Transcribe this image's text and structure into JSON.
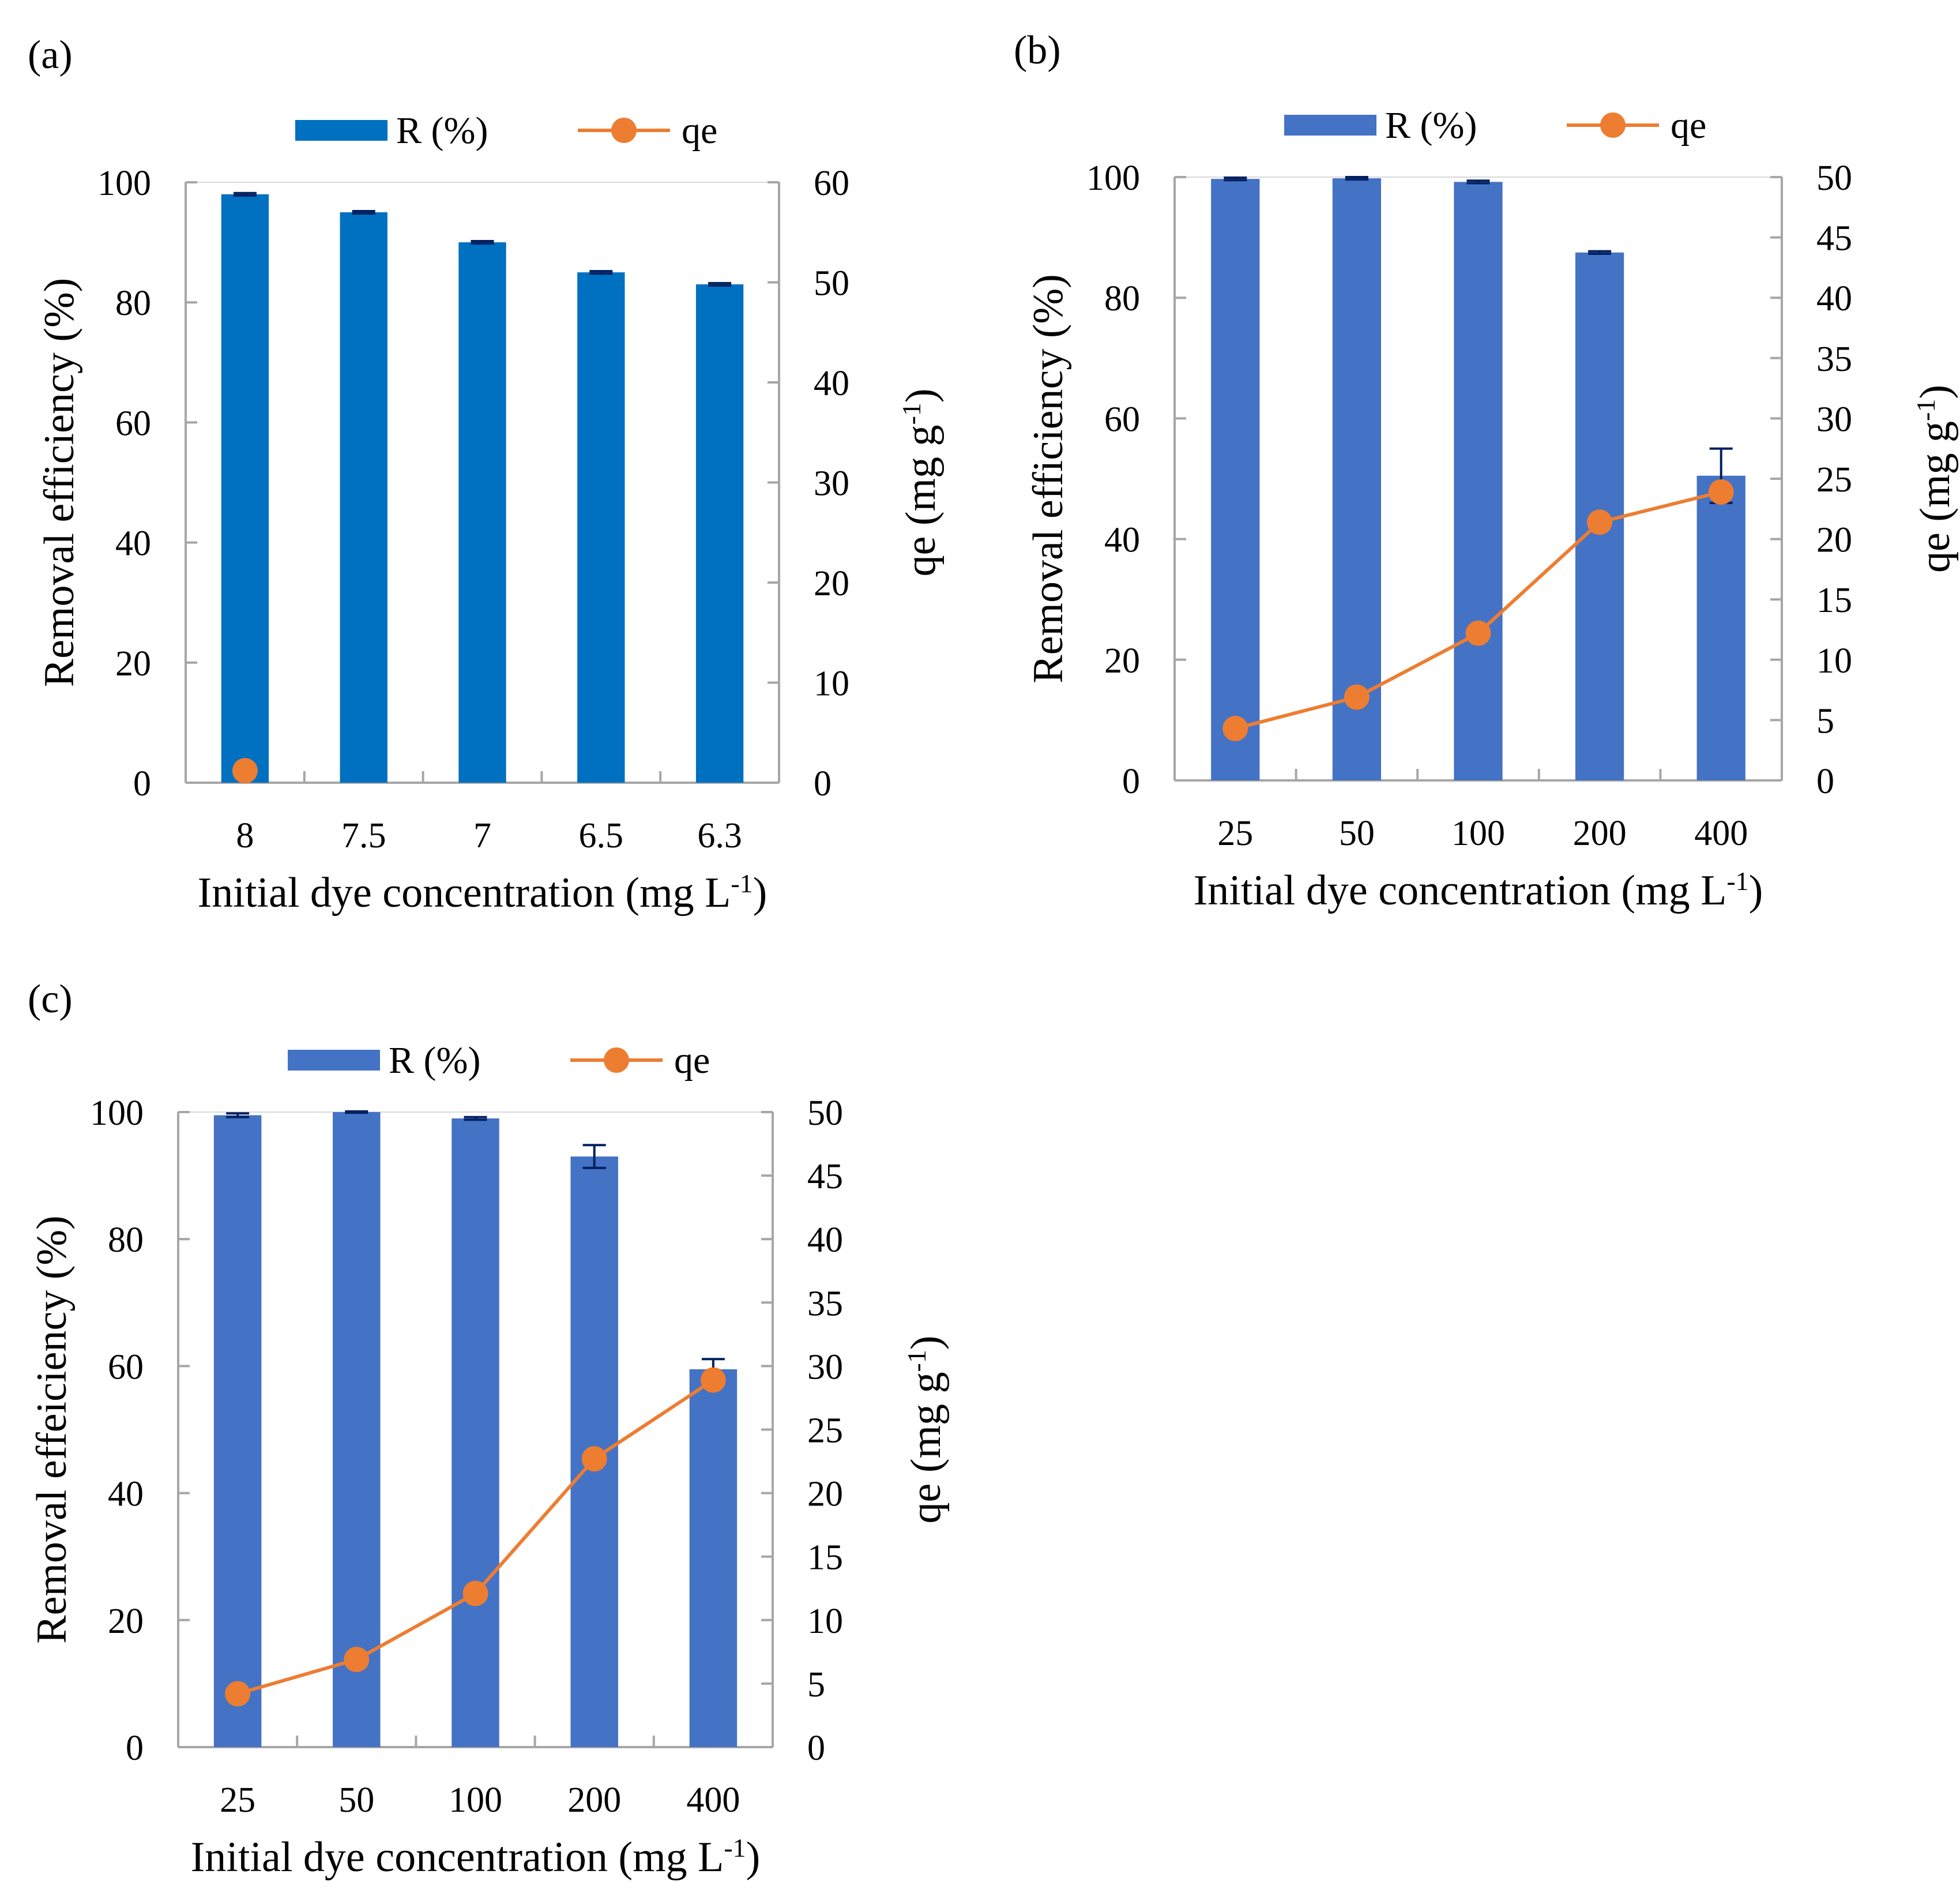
{
  "colors": {
    "bar_a": "#0070C0",
    "bar_bc": "#4472C4",
    "line": "#ED7D31",
    "error": "#002060",
    "axis": "#A6A6A6"
  },
  "chart_data": [
    {
      "panel_label": "(a)",
      "type": "bar+line",
      "categories": [
        "8",
        "7.5",
        "7",
        "6.5",
        "6.3"
      ],
      "xlabel": "Initial dye concentration (mg L",
      "xlabel_sup": "-1",
      "xlabel_end": ")",
      "ylabel": "Removal efficiency (%)",
      "y2label": "qe (mg g",
      "y2label_sup": "-1",
      "y2label_end": ")",
      "ylim": [
        0,
        100
      ],
      "yticks": [
        0,
        20,
        40,
        60,
        80,
        100
      ],
      "y2lim": [
        0,
        60
      ],
      "y2ticks": [
        0,
        10,
        20,
        30,
        40,
        50,
        60
      ],
      "legend": {
        "bar": "R (%)",
        "line": "qe",
        "placement": "top"
      },
      "series": [
        {
          "name": "R (%)",
          "kind": "bar",
          "values": [
            98,
            95,
            90,
            85,
            83
          ],
          "errors": [
            0.2,
            0.2,
            0.2,
            0.2,
            0.2
          ]
        },
        {
          "name": "qe",
          "kind": "line",
          "axis": "right",
          "values": [
            1.2,
            null,
            null,
            null,
            null
          ]
        }
      ]
    },
    {
      "panel_label": "(b)",
      "type": "bar+line",
      "categories": [
        "25",
        "50",
        "100",
        "200",
        "400"
      ],
      "xlabel": "Initial dye concentration (mg L",
      "xlabel_sup": "-1",
      "xlabel_end": ")",
      "ylabel": "Removal efficiency (%)",
      "y2label": "qe (mg g",
      "y2label_sup": "-1",
      "y2label_end": ")",
      "ylim": [
        0,
        100
      ],
      "yticks": [
        0,
        20,
        40,
        60,
        80,
        100
      ],
      "y2lim": [
        0,
        50
      ],
      "y2ticks": [
        0,
        5,
        10,
        15,
        20,
        25,
        30,
        35,
        40,
        45,
        50
      ],
      "legend": {
        "bar": "R (%)",
        "line": "qe",
        "placement": "top"
      },
      "series": [
        {
          "name": "R (%)",
          "kind": "bar",
          "values": [
            99.7,
            99.8,
            99.2,
            87.5,
            50.5
          ],
          "errors": [
            0.2,
            0.2,
            0.2,
            0.2,
            4.5
          ]
        },
        {
          "name": "qe",
          "kind": "line",
          "axis": "right",
          "values": [
            4.3,
            6.9,
            12.2,
            21.4,
            23.9
          ]
        }
      ]
    },
    {
      "panel_label": "(c)",
      "type": "bar+line",
      "categories": [
        "25",
        "50",
        "100",
        "200",
        "400"
      ],
      "xlabel": "Initial dye concentration (mg L",
      "xlabel_sup": "-1",
      "xlabel_end": ")",
      "ylabel": "Removal effeiciency (%)",
      "y2label": "qe (mg g",
      "y2label_sup": "-1",
      "y2label_end": ")",
      "ylim": [
        0,
        100
      ],
      "yticks": [
        0,
        20,
        40,
        60,
        80,
        100
      ],
      "y2lim": [
        0,
        50
      ],
      "y2ticks": [
        0,
        5,
        10,
        15,
        20,
        25,
        30,
        35,
        40,
        45,
        50
      ],
      "legend": {
        "bar": "R (%)",
        "line": "qe",
        "placement": "top"
      },
      "series": [
        {
          "name": "R (%)",
          "kind": "bar",
          "values": [
            99.5,
            100,
            99,
            93,
            59.5
          ],
          "errors": [
            0.3,
            0.1,
            0.2,
            1.8,
            1.6
          ]
        },
        {
          "name": "qe",
          "kind": "line",
          "axis": "right",
          "values": [
            4.2,
            6.9,
            12.1,
            22.7,
            28.9
          ]
        }
      ]
    }
  ]
}
